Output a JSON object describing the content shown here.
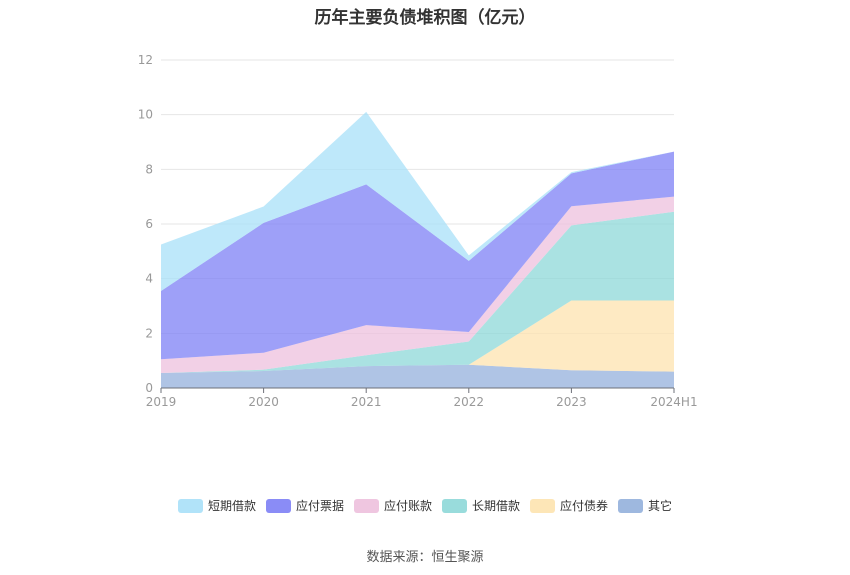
{
  "title": "历年主要负债堆积图（亿元）",
  "source": "数据来源：恒生聚源",
  "chart_data": {
    "type": "area",
    "stacked": true,
    "title": "历年主要负债堆积图（亿元）",
    "categories": [
      "2019",
      "2020",
      "2021",
      "2022",
      "2023",
      "2024H1"
    ],
    "ylim": [
      0,
      12
    ],
    "yticks": [
      0,
      2,
      4,
      6,
      8,
      10,
      12
    ],
    "grid": true,
    "legend": "bottom",
    "series": [
      {
        "name": "其它",
        "color": "#94b0dc",
        "values": [
          0.55,
          0.62,
          0.8,
          0.85,
          0.65,
          0.6
        ]
      },
      {
        "name": "应付债券",
        "color": "#fde3af",
        "values": [
          0.0,
          0.0,
          0.0,
          0.0,
          2.55,
          2.6
        ]
      },
      {
        "name": "长期借款",
        "color": "#8ed8d8",
        "values": [
          0.0,
          0.05,
          0.4,
          0.85,
          2.75,
          3.25
        ]
      },
      {
        "name": "应付账款",
        "color": "#edc0dd",
        "values": [
          0.5,
          0.62,
          1.1,
          0.35,
          0.7,
          0.55
        ]
      },
      {
        "name": "应付票据",
        "color": "#7d80f5",
        "values": [
          2.5,
          4.75,
          5.15,
          2.6,
          1.2,
          1.65
        ]
      },
      {
        "name": "短期借款",
        "color": "#a8e0f8",
        "values": [
          1.7,
          0.6,
          2.65,
          0.2,
          0.05,
          0.0
        ]
      }
    ],
    "legend_order": [
      "短期借款",
      "应付票据",
      "应付账款",
      "长期借款",
      "应付债券",
      "其它"
    ]
  }
}
